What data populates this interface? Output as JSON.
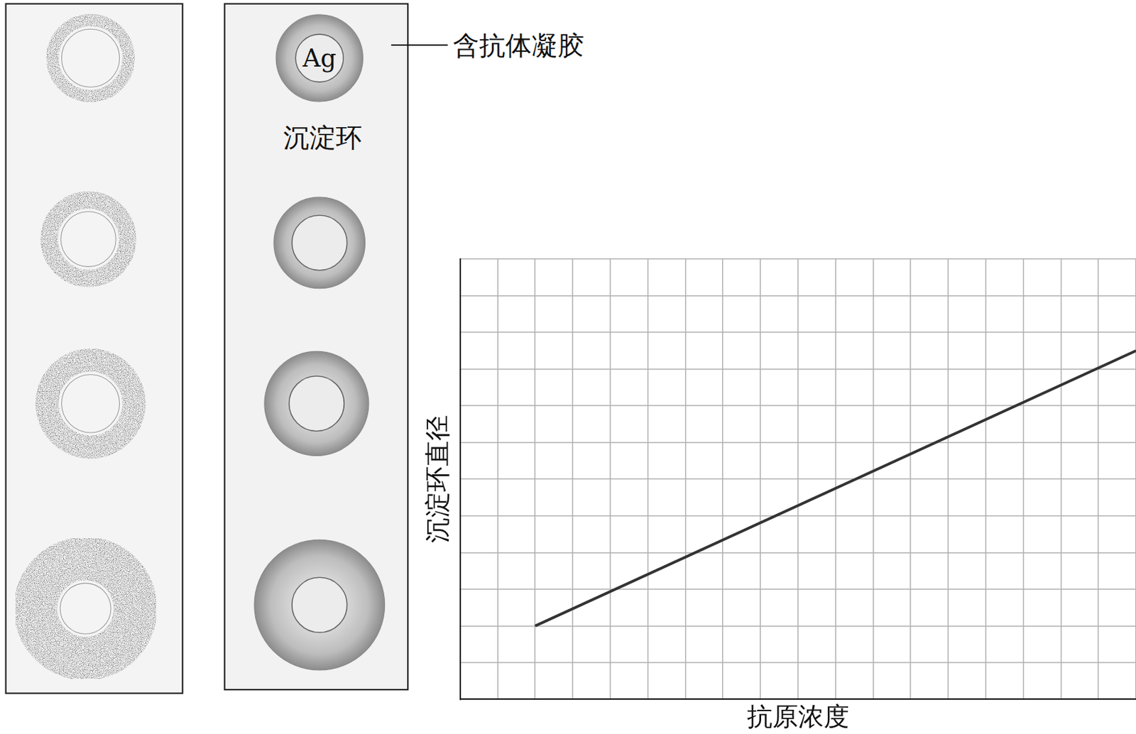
{
  "figure": {
    "well_label": "Ag",
    "gel_label": "含抗体凝胶",
    "ring_label": "沉淀环"
  },
  "chart_data": {
    "type": "line",
    "x_label": "抗原浓度",
    "y_label": "沉淀环直径",
    "x": [
      2,
      18
    ],
    "values": [
      2,
      9.5
    ],
    "color": "#333333",
    "xlim": [
      0,
      18
    ],
    "ylim": [
      0,
      12
    ],
    "xticks": [
      0,
      1,
      2,
      3,
      4,
      5,
      6,
      7,
      8,
      9,
      10,
      11,
      12,
      13,
      14,
      15,
      16,
      17,
      18
    ],
    "yticks": [
      0,
      1,
      2,
      3,
      4,
      5,
      6,
      7,
      8,
      9,
      10,
      11,
      12
    ],
    "grid": true,
    "tick_labels": false
  }
}
